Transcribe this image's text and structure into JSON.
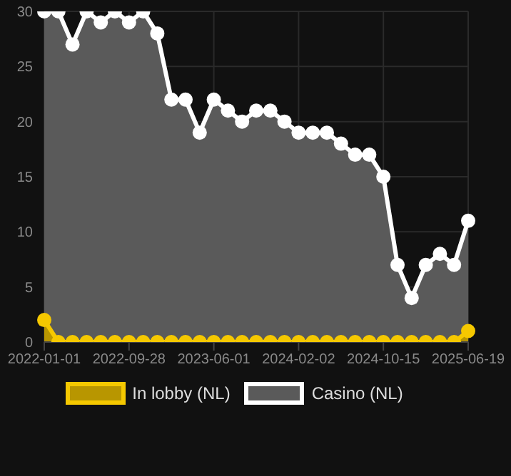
{
  "chart_data": {
    "type": "area",
    "categories": [
      "2022-01-01",
      null,
      null,
      null,
      null,
      null,
      "2022-09-28",
      null,
      null,
      null,
      null,
      null,
      "2023-06-01",
      null,
      null,
      null,
      null,
      null,
      "2024-02-02",
      null,
      null,
      null,
      null,
      null,
      "2024-10-15",
      null,
      null,
      null,
      null,
      null,
      "2025-06-19"
    ],
    "series": [
      {
        "name": "In lobby (NL)",
        "color": "#f5c800",
        "values": [
          2,
          0,
          0,
          0,
          0,
          0,
          0,
          0,
          0,
          0,
          0,
          0,
          0,
          0,
          0,
          0,
          0,
          0,
          0,
          0,
          0,
          0,
          0,
          0,
          0,
          0,
          0,
          0,
          0,
          0,
          1
        ]
      },
      {
        "name": "Casino (NL)",
        "color": "#ffffff",
        "values": [
          30,
          30,
          27,
          30,
          29,
          30,
          29,
          30,
          28,
          22,
          22,
          19,
          22,
          21,
          20,
          21,
          21,
          20,
          19,
          19,
          19,
          18,
          17,
          17,
          15,
          7,
          4,
          7,
          8,
          7,
          11
        ]
      }
    ],
    "ylim": [
      0,
      30
    ],
    "yticks": [
      0,
      5,
      10,
      15,
      20,
      25,
      30
    ],
    "grid": true,
    "legend": "bottom",
    "marker": "circle"
  }
}
